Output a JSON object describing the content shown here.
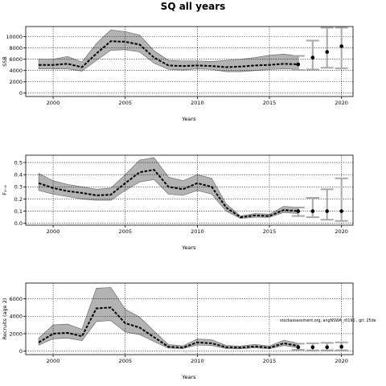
{
  "figure_title": "SQ all years",
  "chart_data": [
    {
      "type": "line",
      "xlabel": "Years",
      "ylabel": "SSB",
      "xlim": [
        1998.1,
        2020.8
      ],
      "ylim": [
        -600,
        11800
      ],
      "xticks": [
        2000,
        2005,
        2010,
        2015,
        2020
      ],
      "yticks": [
        0,
        2000,
        4000,
        6000,
        8000,
        10000
      ],
      "grid": "dotted",
      "legend": "none",
      "annotation": "",
      "historical": {
        "x": [
          1999,
          2000,
          2001,
          2002,
          2003,
          2004,
          2005,
          2006,
          2007,
          2008,
          2009,
          2010,
          2011,
          2012,
          2013,
          2014,
          2015,
          2016,
          2017
        ],
        "median": [
          5000,
          5000,
          5200,
          4600,
          7000,
          9200,
          9100,
          8600,
          6300,
          4900,
          4800,
          4900,
          4800,
          4600,
          4700,
          4900,
          5000,
          5200,
          5100
        ],
        "lower": [
          4300,
          4300,
          4300,
          3900,
          5800,
          7600,
          7700,
          7300,
          5300,
          4200,
          4100,
          4300,
          4200,
          3800,
          3800,
          4000,
          4200,
          4300,
          4200
        ],
        "upper": [
          6000,
          6000,
          6500,
          5500,
          8800,
          11200,
          10900,
          10300,
          7500,
          5800,
          5700,
          5700,
          5600,
          5800,
          6000,
          6300,
          6700,
          6900,
          6600
        ]
      },
      "projection": {
        "x": [
          2017,
          2018,
          2019,
          2020
        ],
        "point": [
          5100,
          6300,
          7300,
          8300
        ],
        "lower": [
          4100,
          4200,
          4500,
          4400
        ],
        "upper": [
          6600,
          9300,
          11600,
          11600
        ]
      }
    },
    {
      "type": "line",
      "xlabel": "Years",
      "ylabel": "F₃₋₈",
      "xlim": [
        1998.1,
        2020.8
      ],
      "ylim": [
        -0.015,
        0.56
      ],
      "xticks": [
        2000,
        2005,
        2010,
        2015,
        2020
      ],
      "yticks": [
        0.0,
        0.1,
        0.2,
        0.3,
        0.4,
        0.5
      ],
      "ytick_labels": [
        "0.0",
        "0.1",
        "0.2",
        "0.3",
        "0.4",
        "0.5"
      ],
      "grid": "dotted",
      "legend": "none",
      "annotation": "",
      "historical": {
        "x": [
          1999,
          2000,
          2001,
          2002,
          2003,
          2004,
          2005,
          2006,
          2007,
          2008,
          2009,
          2010,
          2011,
          2012,
          2013,
          2014,
          2015,
          2016,
          2017
        ],
        "median": [
          0.33,
          0.29,
          0.265,
          0.25,
          0.23,
          0.235,
          0.33,
          0.42,
          0.44,
          0.3,
          0.28,
          0.33,
          0.3,
          0.13,
          0.05,
          0.065,
          0.06,
          0.11,
          0.1
        ],
        "lower": [
          0.27,
          0.24,
          0.22,
          0.2,
          0.19,
          0.19,
          0.27,
          0.34,
          0.36,
          0.24,
          0.23,
          0.27,
          0.24,
          0.1,
          0.04,
          0.05,
          0.05,
          0.09,
          0.08
        ],
        "upper": [
          0.41,
          0.35,
          0.32,
          0.3,
          0.28,
          0.29,
          0.4,
          0.52,
          0.54,
          0.38,
          0.35,
          0.4,
          0.37,
          0.16,
          0.06,
          0.08,
          0.075,
          0.14,
          0.13
        ]
      },
      "projection": {
        "x": [
          2017,
          2018,
          2019,
          2020
        ],
        "point": [
          0.1,
          0.1,
          0.1,
          0.1
        ],
        "lower": [
          0.06,
          0.05,
          0.03,
          0.02
        ],
        "upper": [
          0.13,
          0.21,
          0.28,
          0.37
        ]
      }
    },
    {
      "type": "line",
      "xlabel": "Years",
      "ylabel": "Recruits (age 2)",
      "xlim": [
        1998.1,
        2020.8
      ],
      "ylim": [
        -400,
        7800
      ],
      "xticks": [
        2000,
        2005,
        2010,
        2015,
        2020
      ],
      "yticks": [
        0,
        2000,
        4000,
        6000
      ],
      "grid": "dotted",
      "legend": "none",
      "annotation": "stockassessment.org, angNSWA_r0191 , git: 25de",
      "historical": {
        "x": [
          1999,
          2000,
          2001,
          2002,
          2003,
          2004,
          2005,
          2006,
          2007,
          2008,
          2009,
          2010,
          2011,
          2012,
          2013,
          2014,
          2015,
          2016,
          2017
        ],
        "median": [
          1000,
          2000,
          2100,
          1700,
          4900,
          5000,
          3200,
          2700,
          1600,
          500,
          400,
          1000,
          900,
          450,
          400,
          550,
          400,
          900,
          600
        ],
        "lower": [
          700,
          1400,
          1500,
          1200,
          3400,
          3500,
          2200,
          1900,
          1100,
          350,
          300,
          700,
          650,
          300,
          280,
          380,
          280,
          650,
          400
        ],
        "upper": [
          1500,
          3000,
          3100,
          2500,
          7200,
          7300,
          4800,
          3900,
          2300,
          750,
          600,
          1400,
          1300,
          650,
          580,
          780,
          580,
          1250,
          900
        ]
      },
      "projection": {
        "x": [
          2017,
          2018,
          2019,
          2020
        ],
        "point": [
          450,
          450,
          450,
          500
        ],
        "lower": [
          150,
          100,
          100,
          100
        ],
        "upper": [
          850,
          900,
          950,
          1000
        ]
      }
    }
  ]
}
